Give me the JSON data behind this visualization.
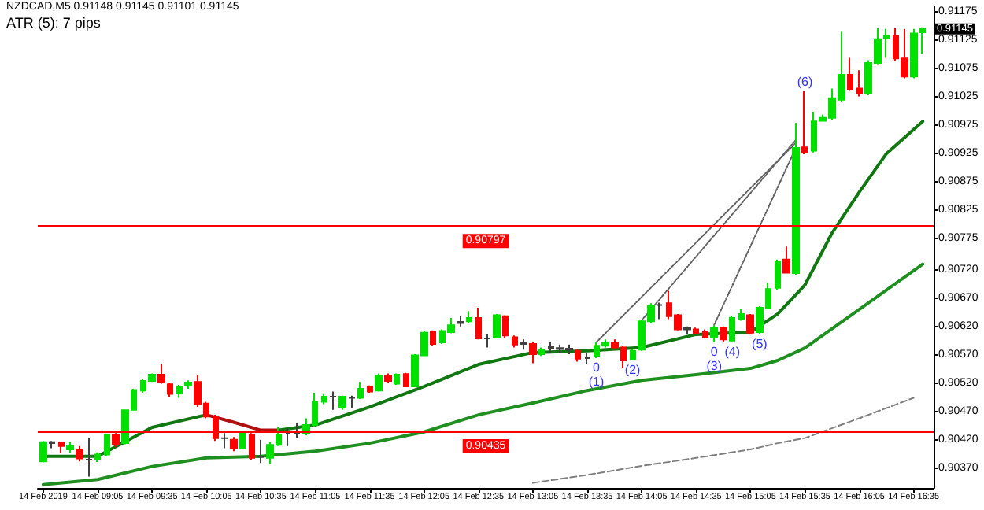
{
  "chart_data": {
    "type": "candlestick",
    "title": "NZDCAD,M5 0.91148 0.91145 0.91101 0.91145",
    "subtitle": "ATR (5): 7 pips",
    "x": [
      "2019-02-14T08:35",
      "2019-02-14T08:40",
      "2019-02-14T08:45",
      "2019-02-14T08:50",
      "2019-02-14T08:55",
      "2019-02-14T09:00",
      "2019-02-14T09:05",
      "2019-02-14T09:10",
      "2019-02-14T09:15",
      "2019-02-14T09:20",
      "2019-02-14T09:25",
      "2019-02-14T09:30",
      "2019-02-14T09:35",
      "2019-02-14T09:40",
      "2019-02-14T09:45",
      "2019-02-14T09:50",
      "2019-02-14T09:55",
      "2019-02-14T10:00",
      "2019-02-14T10:05",
      "2019-02-14T10:10",
      "2019-02-14T10:15",
      "2019-02-14T10:20",
      "2019-02-14T10:25",
      "2019-02-14T10:30",
      "2019-02-14T10:35",
      "2019-02-14T10:40",
      "2019-02-14T10:45",
      "2019-02-14T10:50",
      "2019-02-14T10:55",
      "2019-02-14T11:00",
      "2019-02-14T11:05",
      "2019-02-14T11:10",
      "2019-02-14T11:15",
      "2019-02-14T11:20",
      "2019-02-14T11:25",
      "2019-02-14T11:30",
      "2019-02-14T11:35",
      "2019-02-14T11:40",
      "2019-02-14T11:45",
      "2019-02-14T11:50",
      "2019-02-14T11:55",
      "2019-02-14T12:00",
      "2019-02-14T12:05",
      "2019-02-14T12:10",
      "2019-02-14T12:15",
      "2019-02-14T12:20",
      "2019-02-14T12:25",
      "2019-02-14T12:30",
      "2019-02-14T12:35",
      "2019-02-14T12:40",
      "2019-02-14T12:45",
      "2019-02-14T12:50",
      "2019-02-14T12:55",
      "2019-02-14T13:00",
      "2019-02-14T13:05",
      "2019-02-14T13:10",
      "2019-02-14T13:15",
      "2019-02-14T13:20",
      "2019-02-14T13:25",
      "2019-02-14T13:30",
      "2019-02-14T13:35",
      "2019-02-14T13:40",
      "2019-02-14T13:45",
      "2019-02-14T13:50",
      "2019-02-14T13:55",
      "2019-02-14T14:00",
      "2019-02-14T14:05",
      "2019-02-14T14:10",
      "2019-02-14T14:15",
      "2019-02-14T14:20",
      "2019-02-14T14:25",
      "2019-02-14T14:30",
      "2019-02-14T14:35",
      "2019-02-14T14:40",
      "2019-02-14T14:45",
      "2019-02-14T14:50",
      "2019-02-14T14:55",
      "2019-02-14T15:00",
      "2019-02-14T15:05",
      "2019-02-14T15:10",
      "2019-02-14T15:15",
      "2019-02-14T15:20",
      "2019-02-14T15:25",
      "2019-02-14T15:30",
      "2019-02-14T15:35",
      "2019-02-14T15:40",
      "2019-02-14T15:45",
      "2019-02-14T15:50",
      "2019-02-14T15:55",
      "2019-02-14T16:00",
      "2019-02-14T16:05",
      "2019-02-14T16:10",
      "2019-02-14T16:15",
      "2019-02-14T16:20",
      "2019-02-14T16:25",
      "2019-02-14T16:30",
      "2019-02-14T16:35",
      "2019-02-14T16:40"
    ],
    "ohlc": [
      [
        0.90382,
        0.90418,
        0.9038,
        0.90416
      ],
      [
        0.90414,
        0.90418,
        0.90405,
        0.90416
      ],
      [
        0.90414,
        0.90416,
        0.90396,
        0.90409
      ],
      [
        0.90403,
        0.90416,
        0.90396,
        0.90409
      ],
      [
        0.90403,
        0.90409,
        0.90382,
        0.90387
      ],
      [
        0.90385,
        0.90423,
        0.90355,
        0.90385
      ],
      [
        0.90385,
        0.90398,
        0.90381,
        0.90394
      ],
      [
        0.90394,
        0.90431,
        0.90391,
        0.90428
      ],
      [
        0.90428,
        0.90432,
        0.90407,
        0.90412
      ],
      [
        0.90414,
        0.90473,
        0.90412,
        0.90472
      ],
      [
        0.90473,
        0.9051,
        0.90472,
        0.90508
      ],
      [
        0.90507,
        0.90528,
        0.90503,
        0.90524
      ],
      [
        0.90524,
        0.90537,
        0.90522,
        0.90535
      ],
      [
        0.90535,
        0.90553,
        0.90519,
        0.90521
      ],
      [
        0.90518,
        0.9052,
        0.90496,
        0.90501
      ],
      [
        0.90502,
        0.90517,
        0.90494,
        0.90514
      ],
      [
        0.90516,
        0.90525,
        0.9051,
        0.90521
      ],
      [
        0.90522,
        0.90535,
        0.90478,
        0.90483
      ],
      [
        0.90484,
        0.90487,
        0.90458,
        0.90461
      ],
      [
        0.90461,
        0.90464,
        0.90418,
        0.90423
      ],
      [
        0.90423,
        0.90432,
        0.90405,
        0.90423
      ],
      [
        0.9042,
        0.90425,
        0.904,
        0.90405
      ],
      [
        0.90405,
        0.90434,
        0.90403,
        0.90431
      ],
      [
        0.90429,
        0.90432,
        0.90385,
        0.90388
      ],
      [
        0.9039,
        0.9042,
        0.90379,
        0.9039
      ],
      [
        0.90388,
        0.90416,
        0.90377,
        0.90411
      ],
      [
        0.90411,
        0.90442,
        0.90409,
        0.90428
      ],
      [
        0.90432,
        0.9044,
        0.90409,
        0.90432
      ],
      [
        0.90432,
        0.90449,
        0.90423,
        0.90432
      ],
      [
        0.90431,
        0.90458,
        0.90428,
        0.90446
      ],
      [
        0.90446,
        0.90503,
        0.90443,
        0.90487
      ],
      [
        0.90487,
        0.90502,
        0.90483,
        0.90496
      ],
      [
        0.90496,
        0.90505,
        0.90473,
        0.90496
      ],
      [
        0.90478,
        0.90498,
        0.90473,
        0.90496
      ],
      [
        0.90494,
        0.90498,
        0.90476,
        0.90494
      ],
      [
        0.90494,
        0.90522,
        0.90492,
        0.9051
      ],
      [
        0.90514,
        0.90516,
        0.90503,
        0.90505
      ],
      [
        0.90507,
        0.90537,
        0.90505,
        0.90533
      ],
      [
        0.90533,
        0.90537,
        0.90521,
        0.90524
      ],
      [
        0.90519,
        0.90537,
        0.90517,
        0.90535
      ],
      [
        0.90536,
        0.90538,
        0.90513,
        0.90514
      ],
      [
        0.90514,
        0.90571,
        0.90513,
        0.90569
      ],
      [
        0.90569,
        0.90612,
        0.90568,
        0.90609
      ],
      [
        0.9061,
        0.90613,
        0.90586,
        0.90589
      ],
      [
        0.90592,
        0.90615,
        0.90589,
        0.90612
      ],
      [
        0.9061,
        0.90635,
        0.90608,
        0.90622
      ],
      [
        0.90626,
        0.90638,
        0.9062,
        0.90628
      ],
      [
        0.90629,
        0.90647,
        0.90626,
        0.90635
      ],
      [
        0.90635,
        0.90653,
        0.90597,
        0.90599
      ],
      [
        0.90599,
        0.90606,
        0.90583,
        0.90599
      ],
      [
        0.90601,
        0.90642,
        0.90599,
        0.9064
      ],
      [
        0.90638,
        0.9064,
        0.90599,
        0.90604
      ],
      [
        0.90601,
        0.90604,
        0.90583,
        0.90588
      ],
      [
        0.90589,
        0.90597,
        0.90579,
        0.90591
      ],
      [
        0.90589,
        0.90592,
        0.90555,
        0.90571
      ],
      [
        0.90571,
        0.90583,
        0.90568,
        0.90579
      ],
      [
        0.90582,
        0.90592,
        0.90574,
        0.90584
      ],
      [
        0.9058,
        0.90588,
        0.90574,
        0.90582
      ],
      [
        0.90579,
        0.90588,
        0.90571,
        0.90581
      ],
      [
        0.90577,
        0.9058,
        0.90558,
        0.90563
      ],
      [
        0.90564,
        0.90574,
        0.90553,
        0.90564
      ],
      [
        0.90568,
        0.90592,
        0.90564,
        0.90586
      ],
      [
        0.90586,
        0.90597,
        0.90583,
        0.90592
      ],
      [
        0.90592,
        0.90597,
        0.9058,
        0.90583
      ],
      [
        0.90583,
        0.90586,
        0.90546,
        0.9056
      ],
      [
        0.90562,
        0.9058,
        0.9056,
        0.90577
      ],
      [
        0.90579,
        0.90631,
        0.90577,
        0.90629
      ],
      [
        0.90629,
        0.90661,
        0.90626,
        0.90656
      ],
      [
        0.90658,
        0.90662,
        0.90633,
        0.90658
      ],
      [
        0.90661,
        0.90683,
        0.90633,
        0.90638
      ],
      [
        0.9064,
        0.90642,
        0.90613,
        0.90615
      ],
      [
        0.90615,
        0.9062,
        0.90606,
        0.90617
      ],
      [
        0.90615,
        0.90618,
        0.90606,
        0.90608
      ],
      [
        0.9061,
        0.90615,
        0.90599,
        0.90601
      ],
      [
        0.90601,
        0.90622,
        0.90592,
        0.90617
      ],
      [
        0.90617,
        0.9062,
        0.90592,
        0.90597
      ],
      [
        0.90595,
        0.90638,
        0.90592,
        0.90635
      ],
      [
        0.90633,
        0.90651,
        0.9063,
        0.90642
      ],
      [
        0.9064,
        0.90642,
        0.90606,
        0.90609
      ],
      [
        0.9061,
        0.90656,
        0.90606,
        0.90653
      ],
      [
        0.90653,
        0.90697,
        0.90651,
        0.90686
      ],
      [
        0.90688,
        0.90738,
        0.90685,
        0.90735
      ],
      [
        0.90738,
        0.90761,
        0.90714,
        0.90715
      ],
      [
        0.90714,
        0.90979,
        0.90711,
        0.90935
      ],
      [
        0.90936,
        0.91035,
        0.90924,
        0.90927
      ],
      [
        0.9093,
        0.90999,
        0.90927,
        0.90982
      ],
      [
        0.90983,
        0.90994,
        0.90982,
        0.90988
      ],
      [
        0.90988,
        0.9104,
        0.90985,
        0.91023
      ],
      [
        0.9102,
        0.9114,
        0.91017,
        0.91064
      ],
      [
        0.91064,
        0.91094,
        0.91037,
        0.91039
      ],
      [
        0.9104,
        0.91072,
        0.91026,
        0.91031
      ],
      [
        0.91031,
        0.9109,
        0.91028,
        0.91085
      ],
      [
        0.91085,
        0.91146,
        0.91083,
        0.91127
      ],
      [
        0.91128,
        0.91145,
        0.91094,
        0.91133
      ],
      [
        0.91133,
        0.91146,
        0.91088,
        0.91093
      ],
      [
        0.91093,
        0.91145,
        0.91058,
        0.91061
      ],
      [
        0.91061,
        0.91145,
        0.91058,
        0.91137
      ],
      [
        0.91139,
        0.91148,
        0.91101,
        0.91145
      ]
    ],
    "colors": [
      "#00e000",
      "#404040",
      "#ff0000",
      "#00e000",
      "#ff0000",
      "#404040",
      "#00e000",
      "#00e000",
      "#ff0000",
      "#00e000",
      "#00e000",
      "#00e000",
      "#00e000",
      "#ff0000",
      "#ff0000",
      "#00e000",
      "#00e000",
      "#ff0000",
      "#ff0000",
      "#ff0000",
      "#404040",
      "#ff0000",
      "#00e000",
      "#ff0000",
      "#404040",
      "#00e000",
      "#00e000",
      "#404040",
      "#404040",
      "#00e000",
      "#00e000",
      "#00e000",
      "#404040",
      "#00e000",
      "#404040",
      "#00e000",
      "#ff0000",
      "#00e000",
      "#ff0000",
      "#00e000",
      "#ff0000",
      "#00e000",
      "#00e000",
      "#ff0000",
      "#00e000",
      "#00e000",
      "#404040",
      "#00e000",
      "#ff0000",
      "#404040",
      "#00e000",
      "#ff0000",
      "#ff0000",
      "#404040",
      "#ff0000",
      "#00e000",
      "#404040",
      "#404040",
      "#404040",
      "#ff0000",
      "#404040",
      "#00e000",
      "#00e000",
      "#ff0000",
      "#ff0000",
      "#00e000",
      "#00e000",
      "#00e000",
      "#404040",
      "#ff0000",
      "#ff0000",
      "#404040",
      "#ff0000",
      "#ff0000",
      "#00e000",
      "#ff0000",
      "#00e000",
      "#00e000",
      "#ff0000",
      "#00e000",
      "#00e000",
      "#00e000",
      "#ff0000",
      "#00e000",
      "#ff0000",
      "#00e000",
      "#00e000",
      "#00e000",
      "#00e000",
      "#ff0000",
      "#ff0000",
      "#00e000",
      "#00e000",
      "#00e000",
      "#ff0000",
      "#ff0000",
      "#00e000",
      "#00e000"
    ],
    "series": [
      {
        "type": "line",
        "color": "#117711",
        "line_style": "solid",
        "x": [
          "2019-02-14T08:35",
          "2019-02-14T09:05",
          "2019-02-14T09:35",
          "2019-02-14T10:05"
        ],
        "values": [
          0.90391,
          0.90391,
          0.90442,
          0.90464
        ]
      },
      {
        "type": "line",
        "color": "#b01010",
        "line_style": "solid",
        "x": [
          "2019-02-14T10:05",
          "2019-02-14T10:20",
          "2019-02-14T10:35",
          "2019-02-14T10:45"
        ],
        "values": [
          0.90464,
          0.90451,
          0.90437,
          0.90437
        ]
      },
      {
        "type": "line",
        "color": "#117711",
        "line_style": "solid",
        "x": [
          "2019-02-14T10:45",
          "2019-02-14T11:05",
          "2019-02-14T11:35",
          "2019-02-14T12:05",
          "2019-02-14T12:35",
          "2019-02-14T13:05",
          "2019-02-14T13:35",
          "2019-02-14T14:05",
          "2019-02-14T14:35",
          "2019-02-14T15:05",
          "2019-02-14T15:20",
          "2019-02-14T15:35",
          "2019-02-14T15:50",
          "2019-02-14T16:05",
          "2019-02-14T16:20",
          "2019-02-14T16:40"
        ],
        "values": [
          0.90437,
          0.90446,
          0.90478,
          0.90514,
          0.90553,
          0.90574,
          0.90577,
          0.90583,
          0.90606,
          0.9061,
          0.90642,
          0.90693,
          0.90785,
          0.90857,
          0.90925,
          0.90982
        ]
      },
      {
        "type": "line",
        "color": "#1f8f1f",
        "line_style": "solid",
        "x": [
          "2019-02-14T08:35",
          "2019-02-14T09:05",
          "2019-02-14T09:35",
          "2019-02-14T10:05",
          "2019-02-14T10:35",
          "2019-02-14T11:05",
          "2019-02-14T11:35",
          "2019-02-14T12:05",
          "2019-02-14T12:35",
          "2019-02-14T13:05",
          "2019-02-14T13:35",
          "2019-02-14T14:05",
          "2019-02-14T14:35",
          "2019-02-14T15:05",
          "2019-02-14T15:20",
          "2019-02-14T15:35",
          "2019-02-14T16:05",
          "2019-02-14T16:40"
        ],
        "values": [
          0.90341,
          0.9035,
          0.90373,
          0.90388,
          0.90391,
          0.904,
          0.90414,
          0.90434,
          0.90464,
          0.90485,
          0.90507,
          0.90525,
          0.90535,
          0.90546,
          0.9056,
          0.90582,
          0.9065,
          0.9073
        ]
      },
      {
        "type": "line",
        "color": "#808080",
        "line_style": "dashed",
        "x": [
          "2019-02-14T13:05",
          "2019-02-14T13:35",
          "2019-02-14T14:05",
          "2019-02-14T14:35",
          "2019-02-14T15:05",
          "2019-02-14T15:20",
          "2019-02-14T15:35",
          "2019-02-14T16:05",
          "2019-02-14T16:35"
        ],
        "values": [
          0.90344,
          0.90358,
          0.90374,
          0.90388,
          0.90403,
          0.90414,
          0.90423,
          0.90458,
          0.90494
        ]
      },
      {
        "type": "line",
        "color": "#606060",
        "line_style": "dotted",
        "x": [
          "2019-02-14T13:40",
          "2019-02-14T15:30"
        ],
        "values": [
          0.90592,
          0.90944
        ]
      },
      {
        "type": "line",
        "color": "#606060",
        "line_style": "dotted",
        "x": [
          "2019-02-14T14:05",
          "2019-02-14T15:30"
        ],
        "values": [
          0.90631,
          0.90949
        ]
      },
      {
        "type": "line",
        "color": "#606060",
        "line_style": "dotted",
        "x": [
          "2019-02-14T14:45",
          "2019-02-14T15:30"
        ],
        "values": [
          0.90623,
          0.90935
        ]
      }
    ],
    "marker": "none",
    "ref_lines": [
      {
        "axis": "y",
        "value": 0.90797,
        "label": "0.90797",
        "color": "#ff0000",
        "line_style": "solid"
      },
      {
        "axis": "y",
        "value": 0.90435,
        "label": "0.90435",
        "color": "#ff0000",
        "line_style": "solid"
      }
    ],
    "annotations": [
      {
        "text": "0",
        "x": "2019-02-14T13:40",
        "y": 0.90564
      },
      {
        "text": "(1)",
        "x": "2019-02-14T13:40",
        "y": 0.90564
      },
      {
        "text": "(2)",
        "x": "2019-02-14T14:00",
        "y": 0.9056
      },
      {
        "text": "0",
        "x": "2019-02-14T14:45",
        "y": 0.90592
      },
      {
        "text": "(3)",
        "x": "2019-02-14T14:45",
        "y": 0.90592
      },
      {
        "text": "(4)",
        "x": "2019-02-14T14:55",
        "y": 0.90592
      },
      {
        "text": "(5)",
        "x": "2019-02-14T15:10",
        "y": 0.90606
      },
      {
        "text": "(6)",
        "x": "2019-02-14T15:35",
        "y": 0.91035
      },
      {
        "text": "0.91145",
        "x": "2019-02-14T16:40",
        "y": 0.91145
      }
    ],
    "xlim": [
      "2019-02-14T08:32",
      "2019-02-14T16:46"
    ],
    "xticks": [
      {
        "value": "2019-02-14T08:35",
        "label": "14 Feb 2019"
      },
      {
        "value": "2019-02-14T09:05",
        "label": "14 Feb 09:05"
      },
      {
        "value": "2019-02-14T09:35",
        "label": "14 Feb 09:35"
      },
      {
        "value": "2019-02-14T10:05",
        "label": "14 Feb 10:05"
      },
      {
        "value": "2019-02-14T10:35",
        "label": "14 Feb 10:35"
      },
      {
        "value": "2019-02-14T11:05",
        "label": "14 Feb 11:05"
      },
      {
        "value": "2019-02-14T11:35",
        "label": "14 Feb 11:35"
      },
      {
        "value": "2019-02-14T12:05",
        "label": "14 Feb 12:05"
      },
      {
        "value": "2019-02-14T12:35",
        "label": "14 Feb 12:35"
      },
      {
        "value": "2019-02-14T13:05",
        "label": "14 Feb 13:05"
      },
      {
        "value": "2019-02-14T13:35",
        "label": "14 Feb 13:35"
      },
      {
        "value": "2019-02-14T14:05",
        "label": "14 Feb 14:05"
      },
      {
        "value": "2019-02-14T14:35",
        "label": "14 Feb 14:35"
      },
      {
        "value": "2019-02-14T15:05",
        "label": "14 Feb 15:05"
      },
      {
        "value": "2019-02-14T15:35",
        "label": "14 Feb 15:35"
      },
      {
        "value": "2019-02-14T16:05",
        "label": "14 Feb 16:05"
      },
      {
        "value": "2019-02-14T16:35",
        "label": "14 Feb 16:35"
      }
    ],
    "ylim": [
      0.90335,
      0.91185
    ],
    "yticks": [
      0.91175,
      0.91125,
      0.91075,
      0.91025,
      0.90975,
      0.90925,
      0.90875,
      0.90825,
      0.90775,
      {
        "value": 0.9072,
        "label": "0.90720"
      },
      {
        "value": 0.9067,
        "label": "0.90670"
      },
      {
        "value": 0.9062,
        "label": "0.90620"
      },
      {
        "value": 0.9057,
        "label": "0.90570"
      },
      {
        "value": 0.9052,
        "label": "0.90520"
      },
      {
        "value": 0.9047,
        "label": "0.90470"
      },
      {
        "value": 0.9042,
        "label": "0.90420"
      },
      {
        "value": 0.9037,
        "label": "0.90370"
      }
    ],
    "grid": false
  }
}
